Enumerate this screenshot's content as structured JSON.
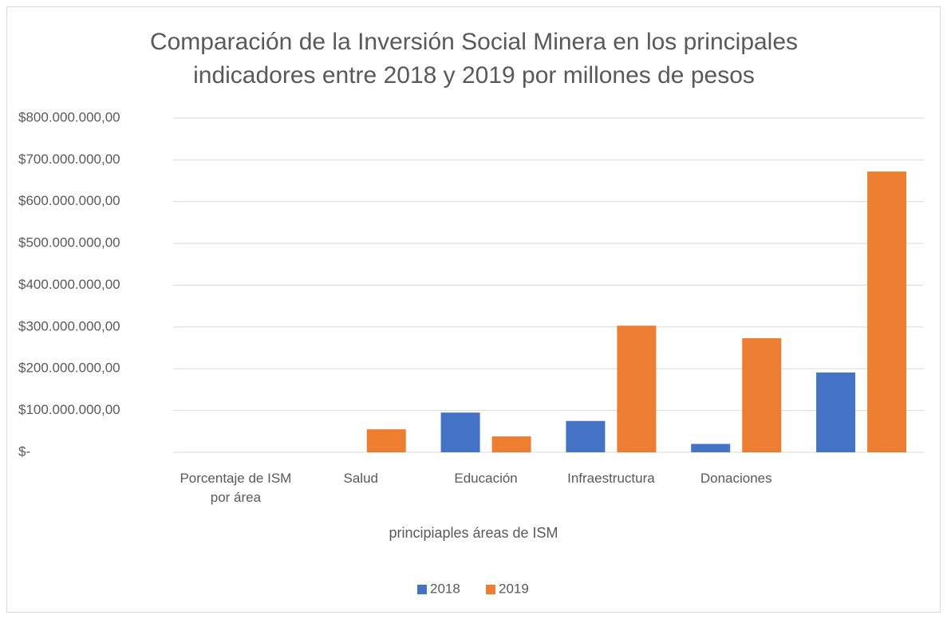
{
  "chart_data": {
    "type": "bar",
    "title": "Comparación de la Inversión Social Minera en los principales indicadores entre 2018 y 2019 por millones de pesos",
    "x_label": "principiaples áreas de ISM",
    "categories": [
      "Porcentaje de ISM por área",
      "Salud",
      "Educación",
      "Infraestructura",
      "Donaciones",
      null
    ],
    "series": [
      {
        "name": "2018",
        "color": "#4472c4",
        "values": [
          0,
          0,
          95000000,
          75000000,
          20000000,
          191000000
        ]
      },
      {
        "name": "2019",
        "color": "#ed7d31",
        "values": [
          0,
          55000000,
          38000000,
          303000000,
          273000000,
          672000000
        ]
      }
    ],
    "ylim": [
      0,
      800000000
    ],
    "yticks": [
      {
        "value": 0,
        "label": "$-"
      },
      {
        "value": 100000000,
        "label": "$100.000.000,00"
      },
      {
        "value": 200000000,
        "label": "$200.000.000,00"
      },
      {
        "value": 300000000,
        "label": "$300.000.000,00"
      },
      {
        "value": 400000000,
        "label": "$400.000.000,00"
      },
      {
        "value": 500000000,
        "label": "$500.000.000,00"
      },
      {
        "value": 600000000,
        "label": "$600.000.000,00"
      },
      {
        "value": 700000000,
        "label": "$700.000.000,00"
      },
      {
        "value": 800000000,
        "label": "$800.000.000,00"
      }
    ],
    "grid": true,
    "legend": "bottom"
  }
}
